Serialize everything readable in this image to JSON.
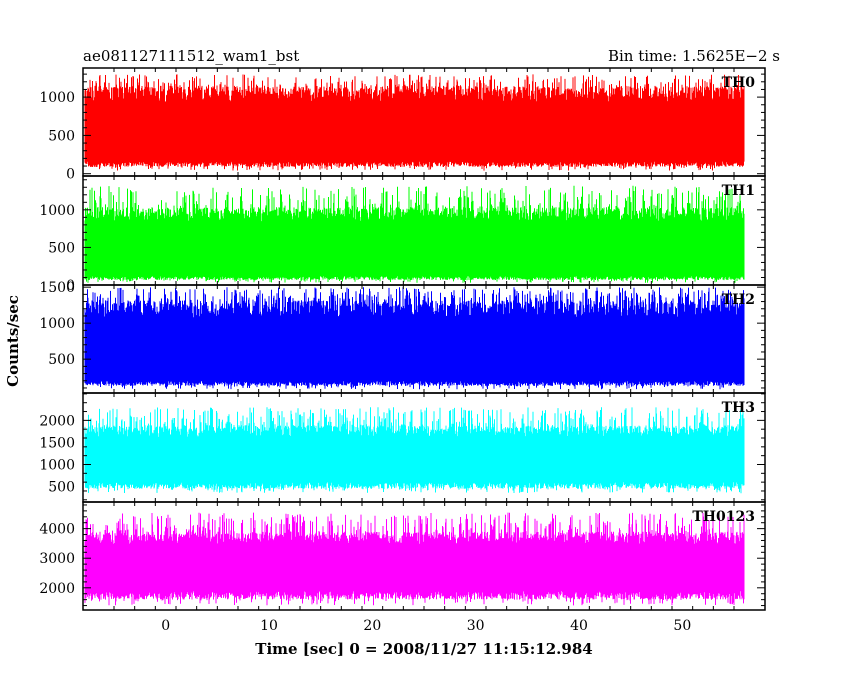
{
  "header": {
    "left_title": "ae081127111512_wam1_bst",
    "right_title": "Bin time: 1.5625E−2 s"
  },
  "chart_data": {
    "type": "line",
    "xlabel": "Time [sec] 0 = 2008/11/27 11:15:12.984",
    "ylabel": "Counts/sec",
    "xlim": [
      -8,
      58
    ],
    "x_ticks": [
      0,
      10,
      20,
      30,
      40,
      50
    ],
    "x_range_data": [
      -7.8,
      56
    ],
    "bin_time_s": 0.015625,
    "panels": [
      {
        "name": "TH0",
        "color": "#ff0000",
        "ylim": [
          -30,
          1380
        ],
        "y_ticks": [
          0,
          500,
          1000
        ],
        "typical_range": [
          160,
          1000
        ],
        "peak_range": [
          1100,
          1300
        ],
        "dip_min": 40
      },
      {
        "name": "TH1",
        "color": "#00ff00",
        "ylim": [
          0,
          1450
        ],
        "y_ticks": [
          0,
          500,
          1000
        ],
        "typical_range": [
          120,
          900
        ],
        "peak_range": [
          1000,
          1320
        ],
        "dip_min": 30
      },
      {
        "name": "TH2",
        "color": "#0000ff",
        "ylim": [
          30,
          1530
        ],
        "y_ticks": [
          500,
          1000,
          1500
        ],
        "typical_range": [
          200,
          1150
        ],
        "peak_range": [
          1300,
          1500
        ],
        "dip_min": 80
      },
      {
        "name": "TH3",
        "color": "#00ffff",
        "ylim": [
          150,
          2620
        ],
        "y_ticks": [
          500,
          1000,
          1500,
          2000
        ],
        "typical_range": [
          600,
          1700
        ],
        "peak_range": [
          1900,
          2300
        ],
        "dip_min": 350
      },
      {
        "name": "TH0123",
        "color": "#ff00ff",
        "ylim": [
          1250,
          4900
        ],
        "y_ticks": [
          2000,
          3000,
          4000
        ],
        "typical_range": [
          1900,
          3600
        ],
        "peak_range": [
          3900,
          4550
        ],
        "dip_min": 1400
      }
    ]
  }
}
